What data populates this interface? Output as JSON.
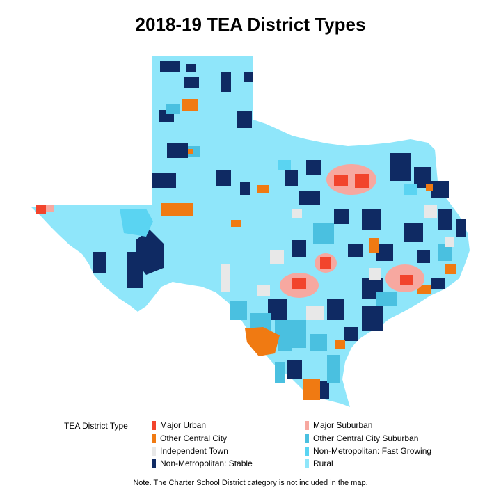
{
  "title": "2018-19 TEA District Types",
  "legend": {
    "title": "TEA District Type",
    "items": [
      {
        "label": "Major Urban",
        "color": "#f2442c"
      },
      {
        "label": "Major Suburban",
        "color": "#f7a8a0"
      },
      {
        "label": "Other Central City",
        "color": "#f07a12"
      },
      {
        "label": "Other Central City Suburban",
        "color": "#4ac0e0"
      },
      {
        "label": "Independent Town",
        "color": "#e8e8e8"
      },
      {
        "label": "Non-Metropolitan: Fast Growing",
        "color": "#5ad4f2"
      },
      {
        "label": "Non-Metropolitan: Stable",
        "color": "#0f2a63"
      },
      {
        "label": "Rural",
        "color": "#8fe6fa"
      }
    ]
  },
  "note": "Note. The Charter School District category is not included in the map."
}
